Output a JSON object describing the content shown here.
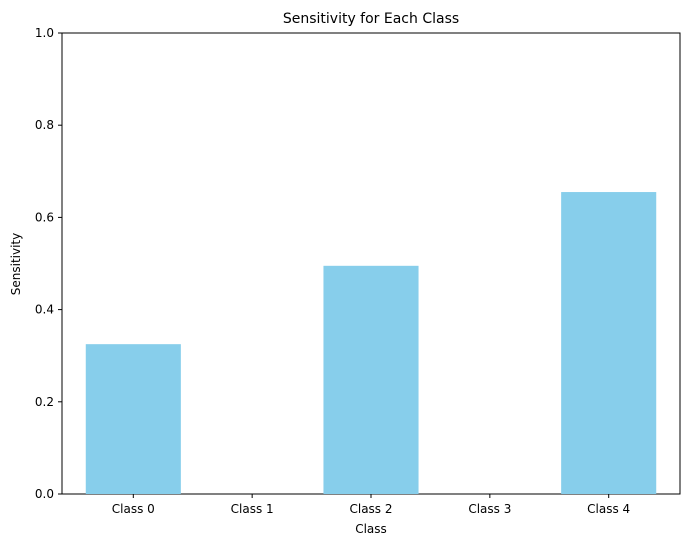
{
  "chart_data": {
    "type": "bar",
    "title": "Sensitivity for Each Class",
    "xlabel": "Class",
    "ylabel": "Sensitivity",
    "categories": [
      "Class 0",
      "Class 1",
      "Class 2",
      "Class 3",
      "Class 4"
    ],
    "values": [
      0.325,
      0.0,
      0.495,
      0.0,
      0.655
    ],
    "ylim": [
      0,
      1
    ],
    "yticks": [
      "0.0",
      "0.2",
      "0.4",
      "0.6",
      "0.8",
      "1.0"
    ],
    "bar_color": "#87ceeb",
    "grid": false,
    "legend": "none"
  }
}
